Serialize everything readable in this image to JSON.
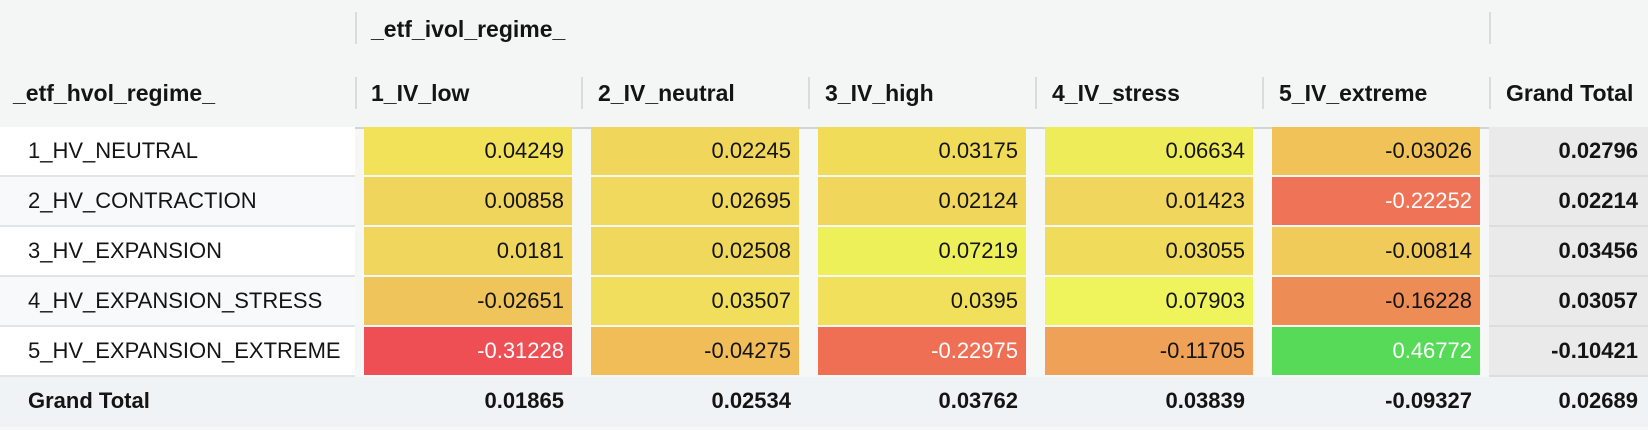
{
  "col_group_field": "_etf_ivol_regime_",
  "row_field": "_etf_hvol_regime_",
  "columns": [
    "1_IV_low",
    "2_IV_neutral",
    "3_IV_high",
    "4_IV_stress",
    "5_IV_extreme",
    "Grand Total"
  ],
  "rows": [
    {
      "label": "1_HV_NEUTRAL",
      "cells": [
        {
          "value": "0.04249",
          "bg": "#f1e25a",
          "fg": "#141414"
        },
        {
          "value": "0.02245",
          "bg": "#f0d75c",
          "fg": "#141414"
        },
        {
          "value": "0.03175",
          "bg": "#f1dc5a",
          "fg": "#141414"
        },
        {
          "value": "0.06634",
          "bg": "#efec5a",
          "fg": "#141414"
        },
        {
          "value": "-0.03026",
          "bg": "#f0c258",
          "fg": "#141414"
        }
      ],
      "total": "0.02796"
    },
    {
      "label": "2_HV_CONTRACTION",
      "cells": [
        {
          "value": "0.00858",
          "bg": "#f0d55d",
          "fg": "#141414"
        },
        {
          "value": "0.02695",
          "bg": "#f0d95c",
          "fg": "#141414"
        },
        {
          "value": "0.02124",
          "bg": "#f0d75c",
          "fg": "#141414"
        },
        {
          "value": "0.01423",
          "bg": "#f0d65d",
          "fg": "#141414"
        },
        {
          "value": "-0.22252",
          "bg": "#ef7356",
          "fg": "#ffffff"
        }
      ],
      "total": "0.02214"
    },
    {
      "label": "3_HV_EXPANSION",
      "cells": [
        {
          "value": "0.0181",
          "bg": "#f0d65c",
          "fg": "#141414"
        },
        {
          "value": "0.02508",
          "bg": "#f0d85c",
          "fg": "#141414"
        },
        {
          "value": "0.07219",
          "bg": "#eef05a",
          "fg": "#141414"
        },
        {
          "value": "0.03055",
          "bg": "#f0db5b",
          "fg": "#141414"
        },
        {
          "value": "-0.00814",
          "bg": "#f0cb5a",
          "fg": "#141414"
        }
      ],
      "total": "0.03456"
    },
    {
      "label": "4_HV_EXPANSION_STRESS",
      "cells": [
        {
          "value": "-0.02651",
          "bg": "#efc45a",
          "fg": "#141414"
        },
        {
          "value": "0.03507",
          "bg": "#f1de5c",
          "fg": "#141414"
        },
        {
          "value": "0.0395",
          "bg": "#f1e05b",
          "fg": "#141414"
        },
        {
          "value": "0.07903",
          "bg": "#eff45c",
          "fg": "#141414"
        },
        {
          "value": "-0.16228",
          "bg": "#ed8d55",
          "fg": "#141414"
        }
      ],
      "total": "0.03057"
    },
    {
      "label": "5_HV_EXPANSION_EXTREME",
      "cells": [
        {
          "value": "-0.31228",
          "bg": "#ee4f54",
          "fg": "#ffffff"
        },
        {
          "value": "-0.04275",
          "bg": "#f0bd59",
          "fg": "#141414"
        },
        {
          "value": "-0.22975",
          "bg": "#ef6f55",
          "fg": "#ffffff"
        },
        {
          "value": "-0.11705",
          "bg": "#efa257",
          "fg": "#141414"
        },
        {
          "value": "0.46772",
          "bg": "#57da58",
          "fg": "#ffffff"
        }
      ],
      "total": "-0.10421"
    }
  ],
  "grand_total": {
    "label": "Grand Total",
    "values": [
      "0.01865",
      "0.02534",
      "0.03762",
      "0.03839",
      "-0.09327",
      "0.02689"
    ]
  }
}
